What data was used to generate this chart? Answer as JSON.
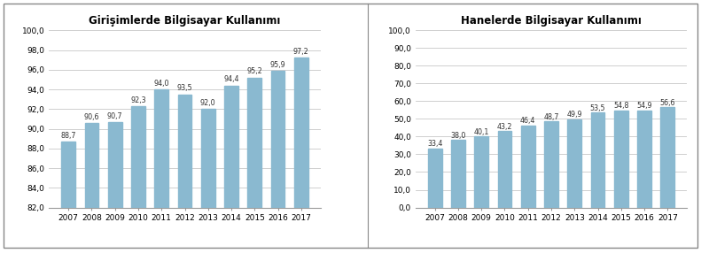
{
  "chart1": {
    "title": "Girişimlerde Bilgisayar Kullanımı",
    "years": [
      "2007",
      "2008",
      "2009",
      "2010",
      "2011",
      "2012",
      "2013",
      "2014",
      "2015",
      "2016",
      "2017"
    ],
    "values": [
      88.7,
      90.6,
      90.7,
      92.3,
      94.0,
      93.5,
      92.0,
      94.4,
      95.2,
      95.9,
      97.2
    ],
    "ylim": [
      82.0,
      100.0
    ],
    "yticks": [
      82.0,
      84.0,
      86.0,
      88.0,
      90.0,
      92.0,
      94.0,
      96.0,
      98.0,
      100.0
    ]
  },
  "chart2": {
    "title": "Hanelerde Bilgisayar Kullanımı",
    "years": [
      "2007",
      "2008",
      "2009",
      "2010",
      "2011",
      "2012",
      "2013",
      "2014",
      "2015",
      "2016",
      "2017"
    ],
    "values": [
      33.4,
      38.0,
      40.1,
      43.2,
      46.4,
      48.7,
      49.9,
      53.5,
      54.8,
      54.9,
      56.6
    ],
    "ylim": [
      0.0,
      100.0
    ],
    "yticks": [
      0.0,
      10.0,
      20.0,
      30.0,
      40.0,
      50.0,
      60.0,
      70.0,
      80.0,
      90.0,
      100.0
    ]
  },
  "bar_color": "#8ab9d0",
  "label_fontsize": 5.8,
  "title_fontsize": 8.5,
  "tick_fontsize": 6.5,
  "background_color": "#ffffff",
  "grid_color": "#c8c8c8",
  "border_color": "#999999"
}
